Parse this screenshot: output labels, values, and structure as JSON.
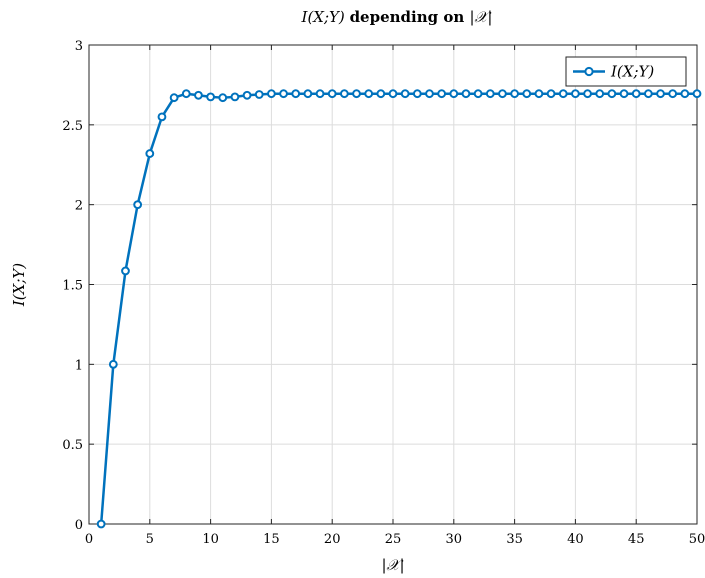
{
  "chart_data": {
    "type": "line",
    "title": {
      "math_prefix": "I(X;Y)",
      "bold_text": "depending on",
      "math_suffix": "|𝒳|"
    },
    "xlabel": "|𝒳|",
    "ylabel": "I(X;Y)",
    "xlim": [
      0,
      50
    ],
    "ylim": [
      0,
      3
    ],
    "xticks": [
      0,
      5,
      10,
      15,
      20,
      25,
      30,
      35,
      40,
      45,
      50
    ],
    "yticks": [
      0,
      0.5,
      1,
      1.5,
      2,
      2.5,
      3
    ],
    "ytick_labels": [
      "0",
      "0.5",
      "1",
      "1.5",
      "2",
      "2.5",
      "3"
    ],
    "grid": true,
    "legend_position": "top-right",
    "series": [
      {
        "name": "I(X;Y)",
        "color": "#0072bd",
        "marker": "circle",
        "x": [
          1,
          2,
          3,
          4,
          5,
          6,
          7,
          8,
          9,
          10,
          11,
          12,
          13,
          14,
          15,
          16,
          17,
          18,
          19,
          20,
          21,
          22,
          23,
          24,
          25,
          26,
          27,
          28,
          29,
          30,
          31,
          32,
          33,
          34,
          35,
          36,
          37,
          38,
          39,
          40,
          41,
          42,
          43,
          44,
          45,
          46,
          47,
          48,
          49,
          50
        ],
        "y": [
          0,
          1.0,
          1.585,
          2.0,
          2.32,
          2.55,
          2.67,
          2.695,
          2.685,
          2.675,
          2.67,
          2.675,
          2.685,
          2.69,
          2.695,
          2.695,
          2.695,
          2.695,
          2.695,
          2.695,
          2.695,
          2.695,
          2.695,
          2.695,
          2.695,
          2.695,
          2.695,
          2.695,
          2.695,
          2.695,
          2.695,
          2.695,
          2.695,
          2.695,
          2.695,
          2.695,
          2.695,
          2.695,
          2.695,
          2.695,
          2.695,
          2.695,
          2.695,
          2.695,
          2.695,
          2.695,
          2.695,
          2.695,
          2.695,
          2.695
        ]
      }
    ]
  }
}
